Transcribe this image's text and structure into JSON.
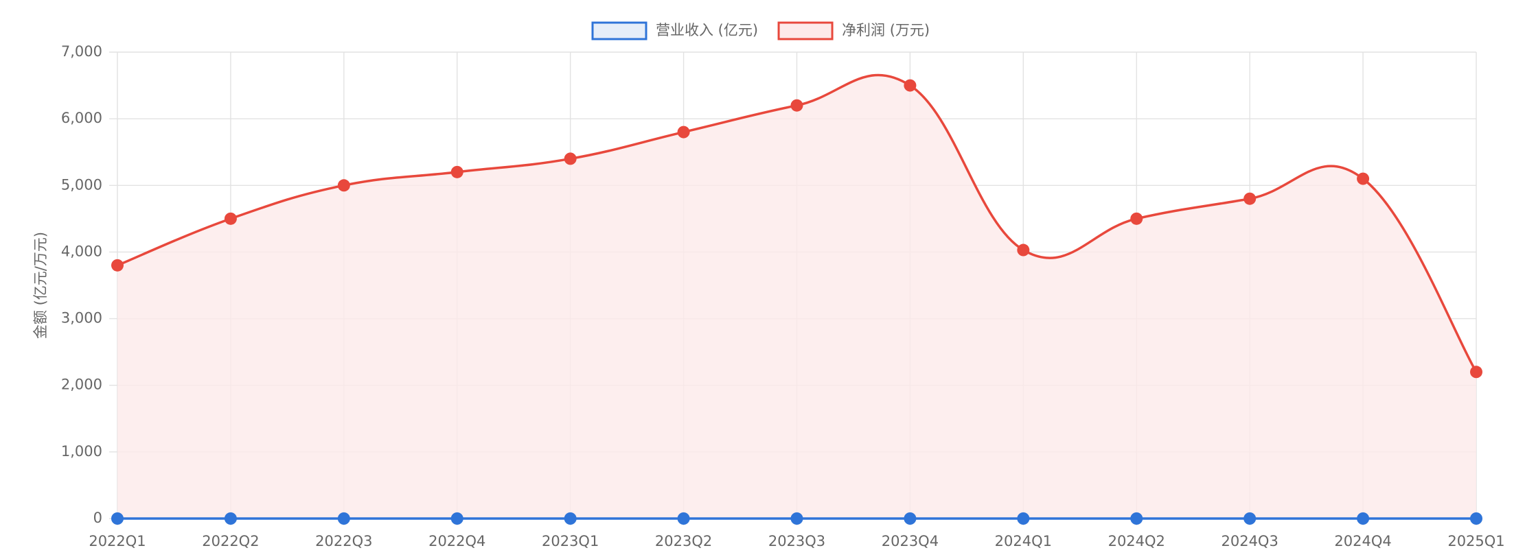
{
  "chart_data": {
    "type": "line",
    "y_label": "金额 (亿元/万元)",
    "categories": [
      "2022Q1",
      "2022Q2",
      "2022Q3",
      "2022Q4",
      "2023Q1",
      "2023Q2",
      "2023Q3",
      "2023Q4",
      "2024Q1",
      "2024Q2",
      "2024Q3",
      "2024Q4",
      "2025Q1"
    ],
    "series": [
      {
        "name": "营业收入 (亿元)",
        "color": "#2f74d8",
        "fill": "#e6eef9",
        "values": [
          0,
          0,
          0,
          0,
          0,
          0,
          0,
          0,
          0,
          0,
          0,
          0,
          0
        ]
      },
      {
        "name": "净利润 (万元)",
        "color": "#e8483c",
        "fill": "#fdeaea",
        "values": [
          3800,
          4500,
          5000,
          5200,
          5400,
          5800,
          6200,
          6500,
          4030,
          4500,
          4800,
          5100,
          2200
        ]
      }
    ],
    "ylim": [
      0,
      7000
    ],
    "yticks": [
      0,
      {
        "value": 1000,
        "label": "1,000"
      },
      {
        "value": 2000,
        "label": "2,000"
      },
      {
        "value": 3000,
        "label": "3,000"
      },
      {
        "value": 4000,
        "label": "4,000"
      },
      {
        "value": 5000,
        "label": "5,000"
      },
      {
        "value": 6000,
        "label": "6,000"
      },
      {
        "value": 7000,
        "label": "7,000"
      }
    ],
    "grid": true,
    "legend": "top"
  }
}
